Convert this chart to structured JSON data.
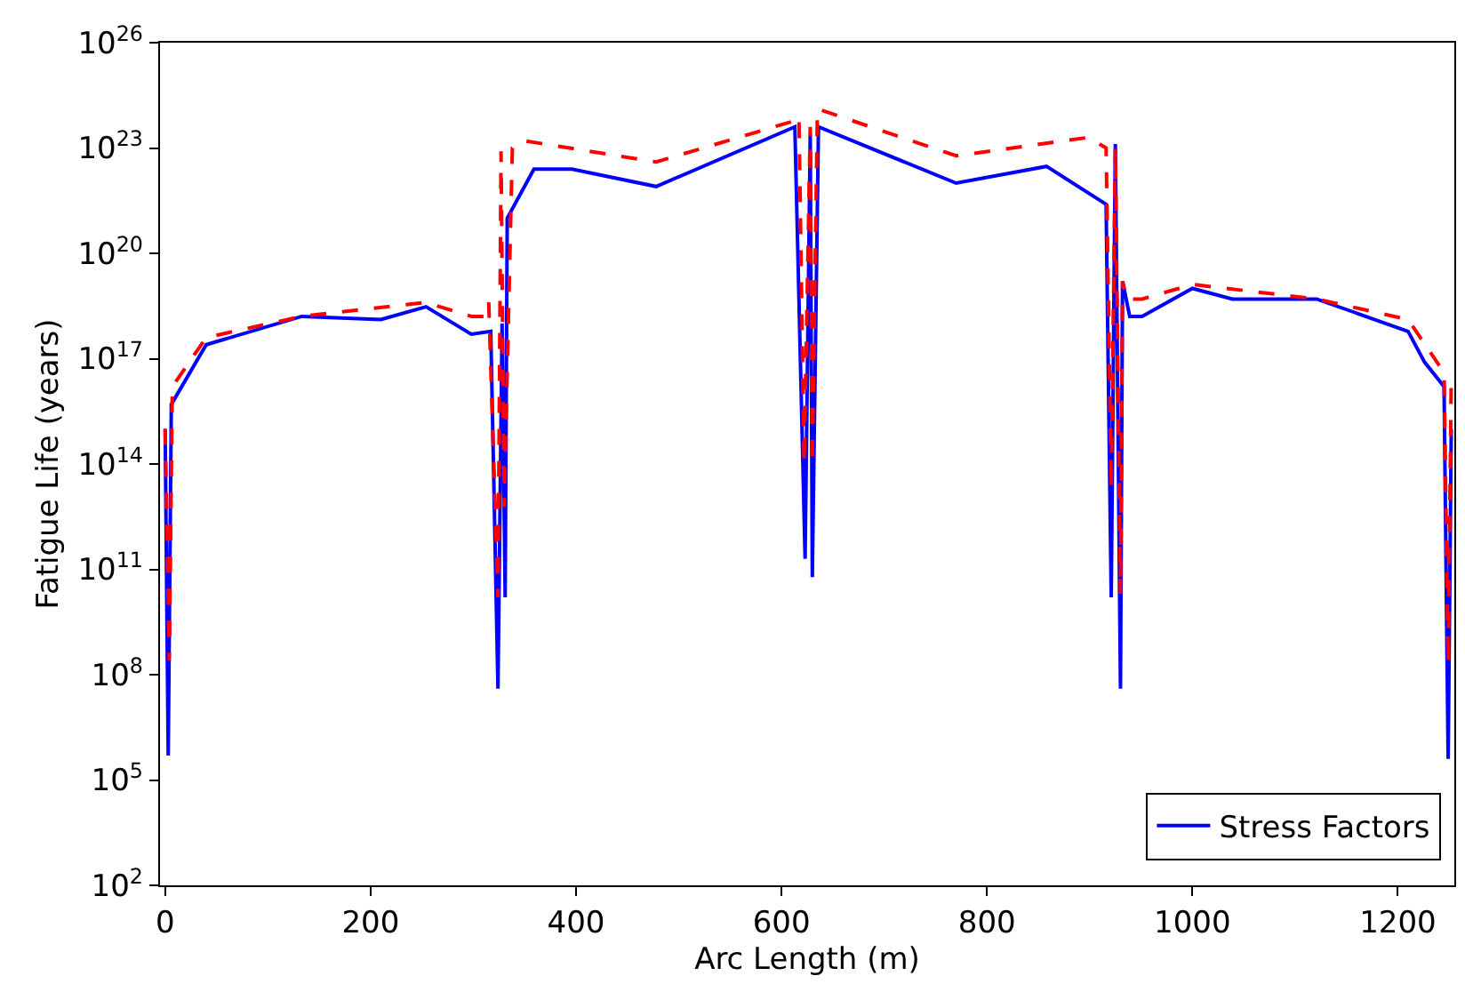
{
  "chart_data": {
    "type": "line",
    "xlabel": "Arc Length (m)",
    "ylabel": "Fatigue Life (years)",
    "log": "y",
    "grid": false,
    "legend": "bottom right",
    "marker": "none",
    "xlim": [
      -5,
      1255
    ],
    "xticks": [
      0,
      200,
      400,
      600,
      800,
      1000,
      1200
    ],
    "ylim": [
      100,
      1e+26
    ],
    "yticks": [
      {
        "value": 100,
        "label": "10$^{2}$"
      },
      {
        "value": 100000.0,
        "label": "10$^{5}$"
      },
      {
        "value": 100000000.0,
        "label": "10$^{8}$"
      },
      {
        "value": 100000000000.0,
        "label": "10$^{11}$"
      },
      {
        "value": 100000000000000.0,
        "label": "10$^{14}$"
      },
      {
        "value": 1e+17,
        "label": "10$^{17}$"
      },
      {
        "value": 1e+20,
        "label": "10$^{20}$"
      },
      {
        "value": 1e+23,
        "label": "10$^{23}$"
      },
      {
        "value": 1e+26,
        "label": "10$^{26}$"
      }
    ],
    "series": [
      {
        "name": "Stress Factors",
        "color": "#0000ff",
        "line_style": "solid",
        "x": [
          0,
          3,
          6,
          40,
          133,
          210,
          254,
          298,
          317,
          324,
          328,
          331,
          333,
          359,
          396,
          478,
          613,
          623,
          628,
          630,
          636,
          770,
          858,
          916,
          921,
          925,
          930,
          932,
          939,
          951,
          1000,
          1039,
          1121,
          1210,
          1226,
          1245,
          1249,
          1252
        ],
        "values": [
          1000000000000000.0,
          500000.0,
          5000000000000000.0,
          2.5e+17,
          1.6e+18,
          1.3e+18,
          3e+18,
          5e+17,
          6e+17,
          40000000.0,
          1e+18,
          16000000000.0,
          1e+21,
          2.5e+22,
          2.5e+22,
          8e+21,
          4e+23,
          200000000000.0,
          2.5e+23,
          60000000000.0,
          4e+23,
          1e+22,
          3e+22,
          2.5e+21,
          16000000000.0,
          1.3e+23,
          40000000.0,
          1.6e+19,
          1.6e+18,
          1.6e+18,
          1e+19,
          5e+18,
          5e+18,
          6e+17,
          8e+16,
          1.6e+16,
          400000.0,
          1000000000000000.0
        ]
      },
      {
        "color": "#ff0000",
        "line_style": "dashed",
        "x": [
          0,
          4,
          7,
          40,
          133,
          254,
          298,
          312,
          315,
          324,
          327,
          330,
          338,
          350,
          478,
          613,
          617,
          622,
          628,
          630,
          635,
          770,
          899,
          916,
          921,
          925,
          930,
          932,
          936,
          951,
          1000,
          1121,
          1210,
          1245,
          1249,
          1252
        ],
        "values": [
          1000000000000000.0,
          250000000.0,
          1.6e+16,
          4e+17,
          1.6e+18,
          4e+18,
          1.6e+18,
          1.6e+18,
          4e+18,
          16000000000.0,
          8e+22,
          6000000000000.0,
          1e+23,
          1.6e+23,
          4e+22,
          6e+23,
          8e+23,
          100000000000000.0,
          4e+23,
          100000000000000.0,
          1.3e+24,
          6e+22,
          2e+23,
          1e+23,
          20000000000000.0,
          1e+23,
          20000000000.0,
          1.6e+19,
          5e+18,
          5e+18,
          1.3e+19,
          5e+18,
          1.3e+18,
          4e+16,
          200000000.0,
          3e+16
        ]
      }
    ]
  }
}
